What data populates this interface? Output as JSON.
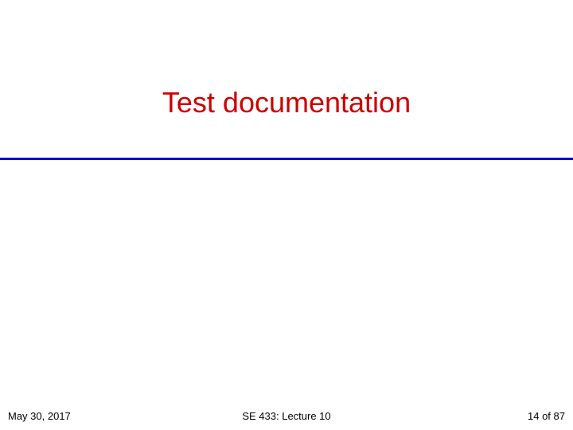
{
  "slide": {
    "title": "Test documentation",
    "title_color": "#cc0000",
    "title_fontsize": 36,
    "divider_color": "#0000cc",
    "background_color": "#ffffff"
  },
  "footer": {
    "date": "May 30, 2017",
    "center": "SE 433: Lecture 10",
    "page": "14 of 87",
    "fontsize": 13,
    "color": "#000000"
  }
}
